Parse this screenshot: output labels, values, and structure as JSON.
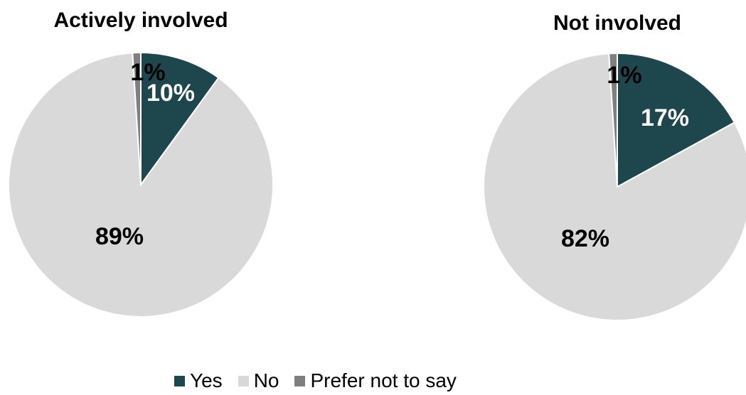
{
  "chart_data": [
    {
      "type": "pie",
      "title": "Actively involved",
      "categories": [
        "Yes",
        "No",
        "Prefer not to say"
      ],
      "values": [
        10,
        89,
        1
      ],
      "labels": [
        "10%",
        "89%",
        "1%"
      ]
    },
    {
      "type": "pie",
      "title": "Not involved",
      "categories": [
        "Yes",
        "No",
        "Prefer not to say"
      ],
      "values": [
        17,
        82,
        1
      ],
      "labels": [
        "17%",
        "82%",
        "1%"
      ]
    }
  ],
  "legend": {
    "placement": "bottom-center",
    "items": [
      {
        "label": "Yes",
        "color": "#1d474d"
      },
      {
        "label": "No",
        "color": "#d9d9d9"
      },
      {
        "label": "Prefer not to say",
        "color": "#7f7f7f"
      }
    ]
  },
  "colors": {
    "yes": "#1d474d",
    "no": "#d9d9d9",
    "prefer_not": "#7f7f7f",
    "label_on_dark": "#ffffff",
    "label_on_light": "#000000"
  }
}
